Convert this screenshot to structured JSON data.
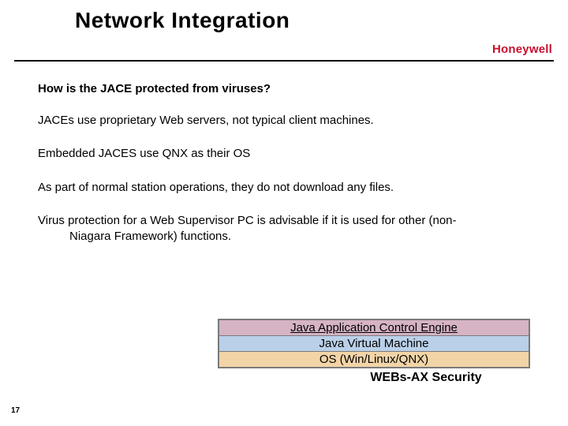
{
  "title": "Network Integration",
  "logo_text": "Honeywell",
  "logo_color": "#c8102e",
  "question": "How is the JACE protected from viruses?",
  "paragraphs": {
    "p1": "JACEs use proprietary Web servers, not typical client machines.",
    "p2": "Embedded JACES use QNX as their OS",
    "p3": "As part of normal station operations, they do not download any files.",
    "p4_line1": "Virus protection for a Web Supervisor PC is advisable if it is used for other (non-",
    "p4_line2": "Niagara Framework) functions."
  },
  "stack": {
    "rows": [
      {
        "label": "Java Application Control Engine",
        "bg": "#d6b3c5",
        "underline": true
      },
      {
        "label": "Java Virtual Machine",
        "bg": "#b9d0e8",
        "underline": false
      },
      {
        "label": "OS (Win/Linux/QNX)",
        "bg": "#f2d4a7",
        "underline": false
      }
    ],
    "border_color": "#7a7a7a"
  },
  "footer_label": "WEBs-AX Security",
  "page_number": "17",
  "colors": {
    "text": "#000000",
    "background": "#ffffff",
    "divider": "#000000"
  },
  "fonts": {
    "title_pt": 28,
    "body_pt": 15,
    "footer_pt": 16,
    "pagenum_pt": 10
  }
}
